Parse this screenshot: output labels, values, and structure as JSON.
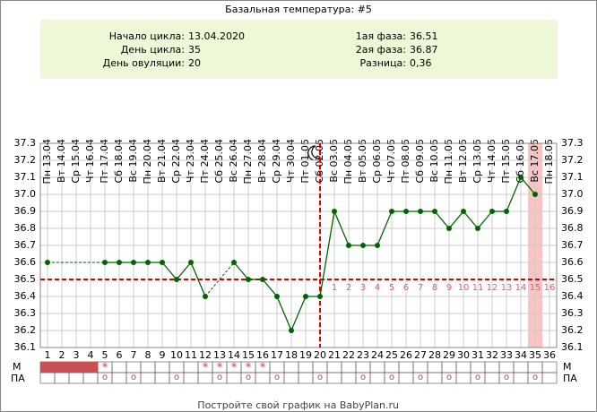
{
  "chart_data": {
    "type": "line",
    "title": "Базальная температура: #5",
    "info_left": [
      {
        "label": "Начало цикла:",
        "value": "13.04.2020"
      },
      {
        "label": "День цикла:",
        "value": "35"
      },
      {
        "label": "День овуляции:",
        "value": "20"
      }
    ],
    "info_right": [
      {
        "label": "1ая фаза:",
        "value": "36.51"
      },
      {
        "label": "2ая фаза:",
        "value": "36.87"
      },
      {
        "label": "Разница:",
        "value": "0,36"
      }
    ],
    "x": [
      1,
      2,
      3,
      4,
      5,
      6,
      7,
      8,
      9,
      10,
      11,
      12,
      13,
      14,
      15,
      16,
      17,
      18,
      19,
      20,
      21,
      22,
      23,
      24,
      25,
      26,
      27,
      28,
      29,
      30,
      31,
      32,
      33,
      34,
      35,
      36
    ],
    "xlim": [
      0.5,
      36.5
    ],
    "dates": [
      "Пн 13.04",
      "Вт 14.04",
      "Ср 15.04",
      "Чт 16.04",
      "Пт 17.04",
      "Сб 18.04",
      "Вс 19.04",
      "Пн 20.04",
      "Вт 21.04",
      "Ср 22.04",
      "Чт 23.04",
      "Пт 24.04",
      "Сб 25.04",
      "Вс 26.04",
      "Пн 27.04",
      "Вт 28.04",
      "Ср 29.04",
      "Чт 30.04",
      "Пт 01.05",
      "Сб 02.05",
      "Вс 03.05",
      "Пн 04.05",
      "Вт 05.05",
      "Ср 06.05",
      "Чт 07.05",
      "Пт 08.05",
      "Сб 09.05",
      "Вс 10.05",
      "Пн 11.05",
      "Вт 12.05",
      "Ср 13.05",
      "Чт 14.05",
      "Пт 15.05",
      "Сб 16.05",
      "Вс 17.05",
      "Пн 18.05"
    ],
    "values": [
      36.6,
      null,
      null,
      null,
      36.6,
      36.6,
      36.6,
      36.6,
      36.6,
      36.5,
      36.6,
      36.4,
      null,
      36.6,
      36.5,
      36.5,
      36.4,
      36.2,
      36.4,
      36.4,
      36.9,
      36.7,
      36.7,
      36.7,
      36.9,
      36.9,
      36.9,
      36.9,
      36.8,
      36.9,
      36.8,
      36.9,
      36.9,
      37.1,
      37.0,
      null
    ],
    "color": "#006400",
    "ylim": [
      36.1,
      37.3
    ],
    "yticks": [
      36.1,
      36.2,
      36.3,
      36.4,
      36.5,
      36.6,
      36.7,
      36.8,
      36.9,
      {
        "value": 37,
        "label": "37.0"
      },
      37.1,
      37.2,
      37.3
    ],
    "grid": true,
    "coverline": 36.5,
    "ovulation_day": 20,
    "highlight_day": 35,
    "phase2_start_day": 21,
    "phase2_labels": [
      1,
      2,
      3,
      4,
      5,
      6,
      7,
      8,
      9,
      10,
      11,
      12,
      13,
      14,
      15,
      16
    ],
    "rows": {
      "m": "М",
      "pa": "ПА"
    },
    "bleeding_days": [
      1,
      2,
      3,
      4
    ],
    "m_symbol": "*",
    "m_days": [
      5,
      12,
      13,
      14,
      15,
      16
    ],
    "pa_symbol": "о",
    "pa_days": [
      5,
      7,
      10,
      13,
      15,
      17,
      20,
      23,
      25,
      27,
      29,
      31,
      33,
      35
    ],
    "footer": "Постройте свой график на BabyPlan.ru"
  }
}
